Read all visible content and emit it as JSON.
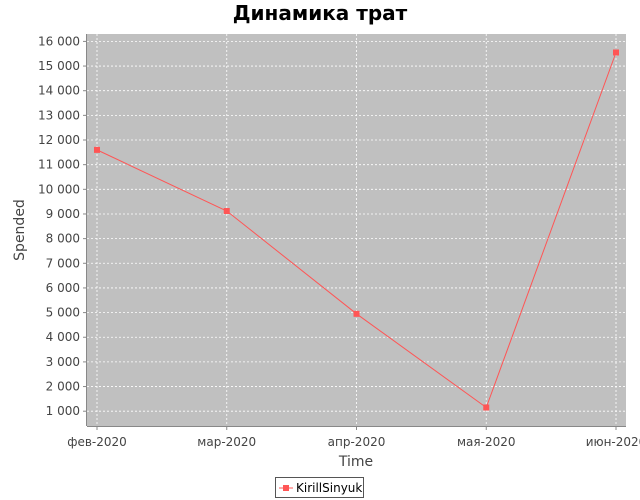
{
  "chart_data": {
    "type": "line",
    "title": "Динамика трат",
    "xlabel": "Time",
    "ylabel": "Spended",
    "categories": [
      "фев-2020",
      "мар-2020",
      "апр-2020",
      "мая-2020",
      "июн-2020"
    ],
    "series": [
      {
        "name": "KirillSinyuk",
        "values": [
          11600,
          9120,
          4950,
          1150,
          15550
        ],
        "color": "#ff5555"
      }
    ],
    "y_ticks": [
      1000,
      2000,
      3000,
      4000,
      5000,
      6000,
      7000,
      8000,
      9000,
      10000,
      11000,
      12000,
      13000,
      14000,
      15000,
      16000
    ],
    "y_tick_labels": [
      "1 000",
      "2 000",
      "3 000",
      "4 000",
      "5 000",
      "6 000",
      "7 000",
      "8 000",
      "9 000",
      "10 000",
      "11 000",
      "12 000",
      "13 000",
      "14 000",
      "15 000",
      "16 000"
    ],
    "ylim": [
      400,
      16300
    ],
    "grid": true,
    "legend_position": "bottom",
    "colors": {
      "plot_background": "#c0c0c0",
      "grid": "#ffffff",
      "series": "#ff5555"
    }
  }
}
